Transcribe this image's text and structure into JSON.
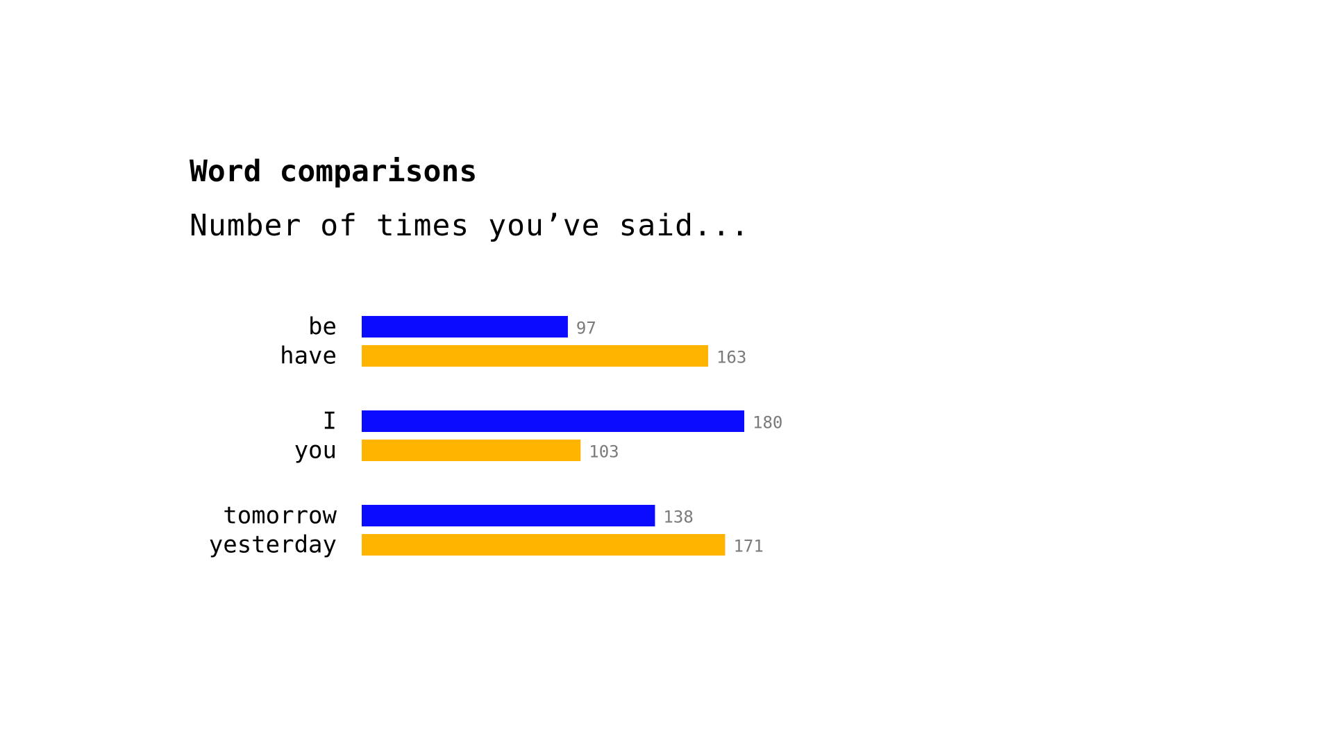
{
  "title": "Word comparisons",
  "subtitle": "Number of times you’ve said...",
  "colors": {
    "series_a": "#0b0bff",
    "series_b": "#ffb400",
    "value_label": "#7a7a7a",
    "text": "#000000"
  },
  "chart_data": {
    "type": "bar",
    "orientation": "horizontal",
    "title": "Word comparisons",
    "subtitle": "Number of times you’ve said...",
    "xlabel": "",
    "ylabel": "",
    "grid": false,
    "legend": "none",
    "xlim": [
      0,
      180
    ],
    "groups": [
      {
        "bars": [
          {
            "label": "be",
            "value": 97,
            "color": "#0b0bff"
          },
          {
            "label": "have",
            "value": 163,
            "color": "#ffb400"
          }
        ]
      },
      {
        "bars": [
          {
            "label": "I",
            "value": 180,
            "color": "#0b0bff"
          },
          {
            "label": "you",
            "value": 103,
            "color": "#ffb400"
          }
        ]
      },
      {
        "bars": [
          {
            "label": "tomorrow",
            "value": 138,
            "color": "#0b0bff"
          },
          {
            "label": "yesterday",
            "value": 171,
            "color": "#ffb400"
          }
        ]
      }
    ]
  }
}
